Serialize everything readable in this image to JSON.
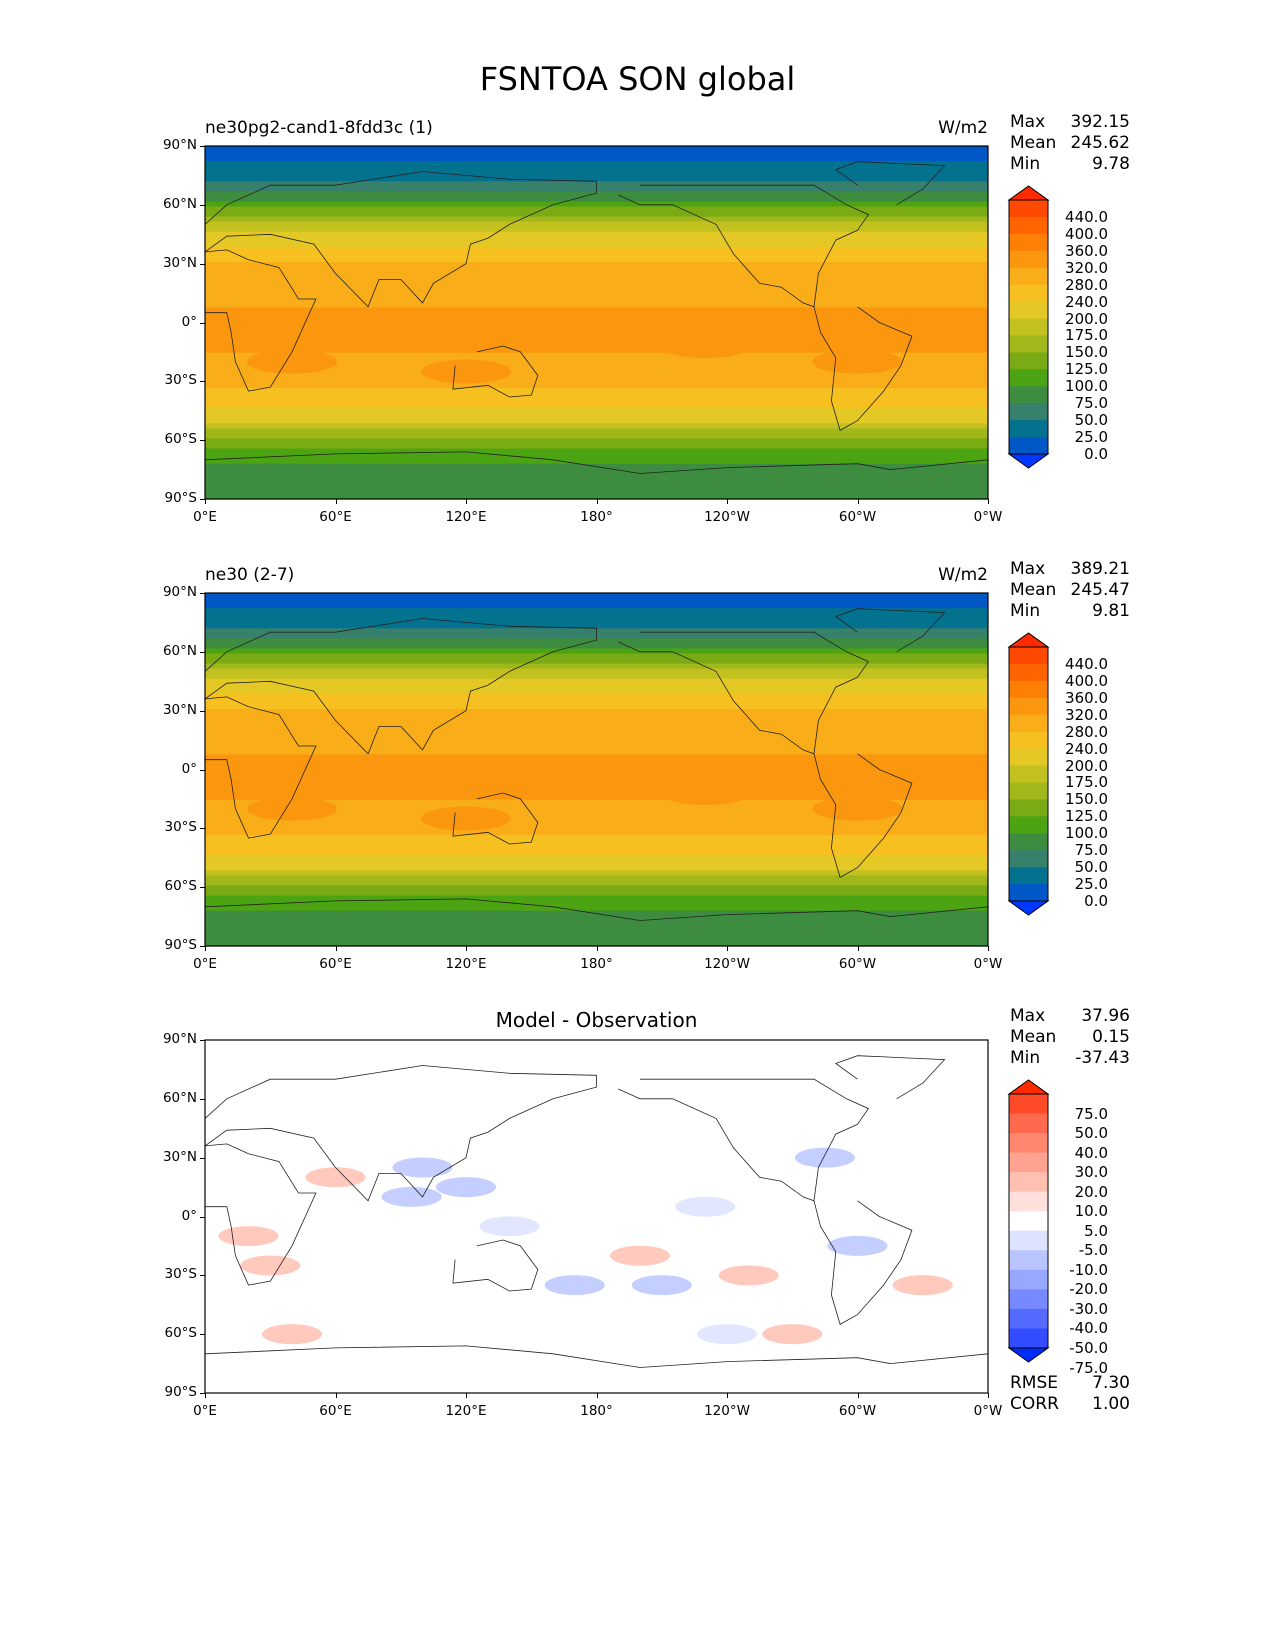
{
  "title": "FSNTOA SON global",
  "lat_ticks": [
    "90°N",
    "60°N",
    "30°N",
    "0°",
    "30°S",
    "60°S",
    "90°S"
  ],
  "lon_ticks": [
    "0°E",
    "60°E",
    "120°E",
    "180°",
    "120°W",
    "60°W",
    "0°W"
  ],
  "chart_data": [
    {
      "type": "heatmap",
      "panel": "test",
      "left_title": "ne30pg2-cand1-8fdd3c (1)",
      "right_title": "W/m2",
      "stats": {
        "max_label": "Max",
        "max": "392.15",
        "mean_label": "Mean",
        "mean": "245.62",
        "min_label": "Min",
        "min": "9.78"
      },
      "levels": [
        "440.0",
        "400.0",
        "360.0",
        "320.0",
        "280.0",
        "240.0",
        "200.0",
        "175.0",
        "150.0",
        "125.0",
        "100.0",
        "75.0",
        "50.0",
        "25.0",
        "0.0"
      ],
      "colors": [
        "#ff2a00",
        "#ff4800",
        "#ff6400",
        "#fd7f05",
        "#fb970f",
        "#f9ad18",
        "#f5c020",
        "#e3c826",
        "#c3c11f",
        "#a2b81a",
        "#7aaa14",
        "#4ca412",
        "#3d8c40",
        "#37806c",
        "#03728f",
        "#0058c6",
        "#0038ff"
      ],
      "zonal_profile": {
        "lat": [
          90,
          75,
          60,
          45,
          30,
          15,
          0,
          -15,
          -30,
          -45,
          -60,
          -75,
          -90
        ],
        "value": [
          5,
          40,
          110,
          215,
          285,
          315,
          325,
          320,
          300,
          235,
          140,
          85,
          80
        ]
      }
    },
    {
      "type": "heatmap",
      "panel": "reference",
      "left_title": "ne30 (2-7)",
      "right_title": "W/m2",
      "stats": {
        "max_label": "Max",
        "max": "389.21",
        "mean_label": "Mean",
        "mean": "245.47",
        "min_label": "Min",
        "min": "9.81"
      },
      "levels": [
        "440.0",
        "400.0",
        "360.0",
        "320.0",
        "280.0",
        "240.0",
        "200.0",
        "175.0",
        "150.0",
        "125.0",
        "100.0",
        "75.0",
        "50.0",
        "25.0",
        "0.0"
      ],
      "colors": [
        "#ff2a00",
        "#ff4800",
        "#ff6400",
        "#fd7f05",
        "#fb970f",
        "#f9ad18",
        "#f5c020",
        "#e3c826",
        "#c3c11f",
        "#a2b81a",
        "#7aaa14",
        "#4ca412",
        "#3d8c40",
        "#37806c",
        "#03728f",
        "#0058c6",
        "#0038ff"
      ],
      "zonal_profile": {
        "lat": [
          90,
          75,
          60,
          45,
          30,
          15,
          0,
          -15,
          -30,
          -45,
          -60,
          -75,
          -90
        ],
        "value": [
          5,
          40,
          110,
          215,
          285,
          315,
          325,
          320,
          300,
          235,
          140,
          85,
          80
        ]
      }
    },
    {
      "type": "heatmap",
      "panel": "difference",
      "center_title": "Model - Observation",
      "stats": {
        "max_label": "Max",
        "max": "37.96",
        "mean_label": "Mean",
        "mean": "0.15",
        "min_label": "Min",
        "min": "-37.43"
      },
      "levels": [
        "75.0",
        "50.0",
        "40.0",
        "30.0",
        "20.0",
        "10.0",
        "5.0",
        "-5.0",
        "-10.0",
        "-20.0",
        "-30.0",
        "-40.0",
        "-50.0",
        "-75.0"
      ],
      "colors": [
        "#ff2a00",
        "#ff4a28",
        "#ff6a4e",
        "#ff8770",
        "#ffa390",
        "#ffc0b2",
        "#ffe0da",
        "#ffffff",
        "#dde3ff",
        "#bac5ff",
        "#98a8ff",
        "#7789ff",
        "#556bff",
        "#344cff",
        "#002dff"
      ],
      "anomalies": [
        [
          100,
          25,
          -15
        ],
        [
          95,
          10,
          -18
        ],
        [
          120,
          15,
          -12
        ],
        [
          60,
          20,
          12
        ],
        [
          20,
          -10,
          12
        ],
        [
          200,
          -20,
          15
        ],
        [
          250,
          -30,
          18
        ],
        [
          210,
          -35,
          -15
        ],
        [
          285,
          30,
          -15
        ],
        [
          300,
          -15,
          -12
        ],
        [
          240,
          -60,
          -10
        ],
        [
          270,
          -60,
          12
        ],
        [
          40,
          -60,
          10
        ],
        [
          330,
          -35,
          12
        ],
        [
          170,
          -35,
          -12
        ],
        [
          230,
          5,
          -10
        ],
        [
          140,
          -5,
          -10
        ],
        [
          30,
          -25,
          10
        ]
      ],
      "metrics": {
        "rmse_label": "RMSE",
        "rmse": "7.30",
        "corr_label": "CORR",
        "corr": "1.00"
      }
    }
  ]
}
